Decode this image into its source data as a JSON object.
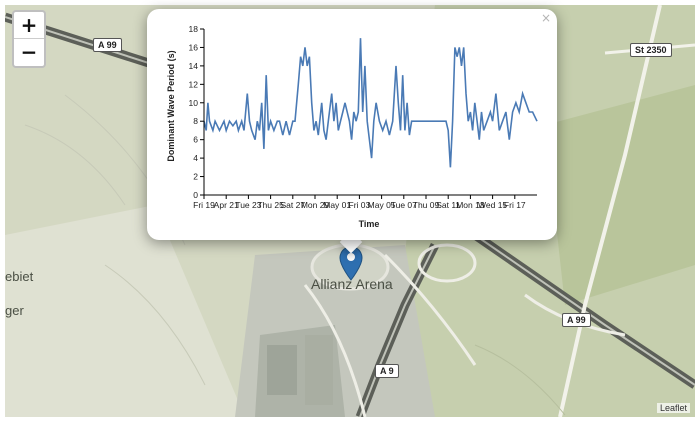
{
  "zoom": {
    "in_label": "+",
    "out_label": "−"
  },
  "map": {
    "road_labels": [
      "A 99",
      "A 99",
      "A 9",
      "St 2350"
    ],
    "place_name": "Allianz Arena",
    "left_edge_labels": [
      "ebiet",
      "ger"
    ],
    "attribution": "Leaflet"
  },
  "popup": {
    "close_label": "×"
  },
  "colors": {
    "series": "#4a7ab5",
    "pin": "#2e6fb0"
  },
  "chart_data": {
    "type": "line",
    "title": "",
    "xlabel": "Time",
    "ylabel": "Dominant Wave Period (s)",
    "ylim": [
      0,
      18
    ],
    "yticks": [
      0,
      2,
      4,
      6,
      8,
      10,
      12,
      14,
      16,
      18
    ],
    "xlim": [
      0,
      30
    ],
    "xticks": [
      {
        "x": 0,
        "label": "Fri 19"
      },
      {
        "x": 2,
        "label": "Apr 21"
      },
      {
        "x": 4,
        "label": "Tue 23"
      },
      {
        "x": 6,
        "label": "Thu 25"
      },
      {
        "x": 8,
        "label": "Sat 27"
      },
      {
        "x": 10,
        "label": "Mon 29"
      },
      {
        "x": 12,
        "label": "May 01"
      },
      {
        "x": 14,
        "label": "Fri 03"
      },
      {
        "x": 16,
        "label": "May 05"
      },
      {
        "x": 18,
        "label": "Tue 07"
      },
      {
        "x": 20,
        "label": "Thu 09"
      },
      {
        "x": 22,
        "label": "Sat 11"
      },
      {
        "x": 24,
        "label": "Mon 13"
      },
      {
        "x": 26,
        "label": "Wed 15"
      },
      {
        "x": 28,
        "label": "Fri 17"
      }
    ],
    "series": [
      {
        "values": [
          [
            0,
            8
          ],
          [
            0.2,
            7
          ],
          [
            0.35,
            10
          ],
          [
            0.5,
            8
          ],
          [
            0.8,
            7
          ],
          [
            1.0,
            8
          ],
          [
            1.4,
            7
          ],
          [
            1.8,
            8
          ],
          [
            2.0,
            7
          ],
          [
            2.3,
            8
          ],
          [
            2.6,
            7.5
          ],
          [
            2.9,
            8
          ],
          [
            3.1,
            7
          ],
          [
            3.4,
            8
          ],
          [
            3.6,
            7
          ],
          [
            3.9,
            11
          ],
          [
            4.1,
            8
          ],
          [
            4.3,
            7
          ],
          [
            4.6,
            6
          ],
          [
            4.8,
            8
          ],
          [
            5.0,
            7
          ],
          [
            5.2,
            10
          ],
          [
            5.4,
            5
          ],
          [
            5.6,
            13
          ],
          [
            5.8,
            7
          ],
          [
            6.0,
            8
          ],
          [
            6.3,
            7
          ],
          [
            6.6,
            8
          ],
          [
            6.8,
            8
          ],
          [
            7.1,
            6.5
          ],
          [
            7.4,
            8
          ],
          [
            7.7,
            6.5
          ],
          [
            8.0,
            8
          ],
          [
            8.2,
            8
          ],
          [
            8.5,
            12
          ],
          [
            8.7,
            15
          ],
          [
            8.9,
            14
          ],
          [
            9.1,
            16
          ],
          [
            9.3,
            14
          ],
          [
            9.5,
            15
          ],
          [
            9.7,
            10
          ],
          [
            9.9,
            7
          ],
          [
            10.1,
            8
          ],
          [
            10.3,
            6.5
          ],
          [
            10.6,
            10
          ],
          [
            10.8,
            7
          ],
          [
            11.0,
            6
          ],
          [
            11.2,
            8
          ],
          [
            11.5,
            11
          ],
          [
            11.7,
            8
          ],
          [
            11.9,
            10
          ],
          [
            12.1,
            7
          ],
          [
            12.3,
            8
          ],
          [
            12.5,
            9
          ],
          [
            12.7,
            10
          ],
          [
            12.9,
            9
          ],
          [
            13.1,
            8
          ],
          [
            13.3,
            6
          ],
          [
            13.5,
            9
          ],
          [
            13.7,
            8
          ],
          [
            13.9,
            9
          ],
          [
            14.1,
            17
          ],
          [
            14.3,
            9
          ],
          [
            14.5,
            14
          ],
          [
            14.7,
            8
          ],
          [
            14.9,
            6
          ],
          [
            15.1,
            4
          ],
          [
            15.3,
            8
          ],
          [
            15.5,
            10
          ],
          [
            15.8,
            8
          ],
          [
            16.1,
            7
          ],
          [
            16.4,
            8
          ],
          [
            16.7,
            6.5
          ],
          [
            17.0,
            8
          ],
          [
            17.3,
            14
          ],
          [
            17.5,
            10
          ],
          [
            17.7,
            7
          ],
          [
            17.9,
            13
          ],
          [
            18.1,
            7
          ],
          [
            18.3,
            10
          ],
          [
            18.5,
            6.5
          ],
          [
            18.7,
            8
          ],
          [
            19.0,
            8
          ],
          [
            19.5,
            8
          ],
          [
            20.0,
            8
          ],
          [
            20.5,
            8
          ],
          [
            21.0,
            8
          ],
          [
            21.5,
            8
          ],
          [
            21.8,
            8
          ],
          [
            22.0,
            7
          ],
          [
            22.2,
            3
          ],
          [
            22.4,
            8
          ],
          [
            22.6,
            16
          ],
          [
            22.8,
            15
          ],
          [
            23.0,
            16
          ],
          [
            23.2,
            14
          ],
          [
            23.4,
            16
          ],
          [
            23.6,
            11
          ],
          [
            23.8,
            8
          ],
          [
            24.0,
            9
          ],
          [
            24.2,
            7
          ],
          [
            24.4,
            10
          ],
          [
            24.6,
            8
          ],
          [
            24.8,
            6
          ],
          [
            25.0,
            9
          ],
          [
            25.2,
            7
          ],
          [
            25.5,
            8
          ],
          [
            25.8,
            9
          ],
          [
            26.0,
            8
          ],
          [
            26.3,
            11
          ],
          [
            26.6,
            7
          ],
          [
            26.9,
            8
          ],
          [
            27.2,
            9
          ],
          [
            27.5,
            6
          ],
          [
            27.8,
            9
          ],
          [
            28.1,
            10
          ],
          [
            28.4,
            9
          ],
          [
            28.7,
            11
          ],
          [
            29.0,
            10
          ],
          [
            29.3,
            9
          ],
          [
            29.6,
            9
          ],
          [
            30.0,
            8
          ]
        ]
      }
    ]
  }
}
